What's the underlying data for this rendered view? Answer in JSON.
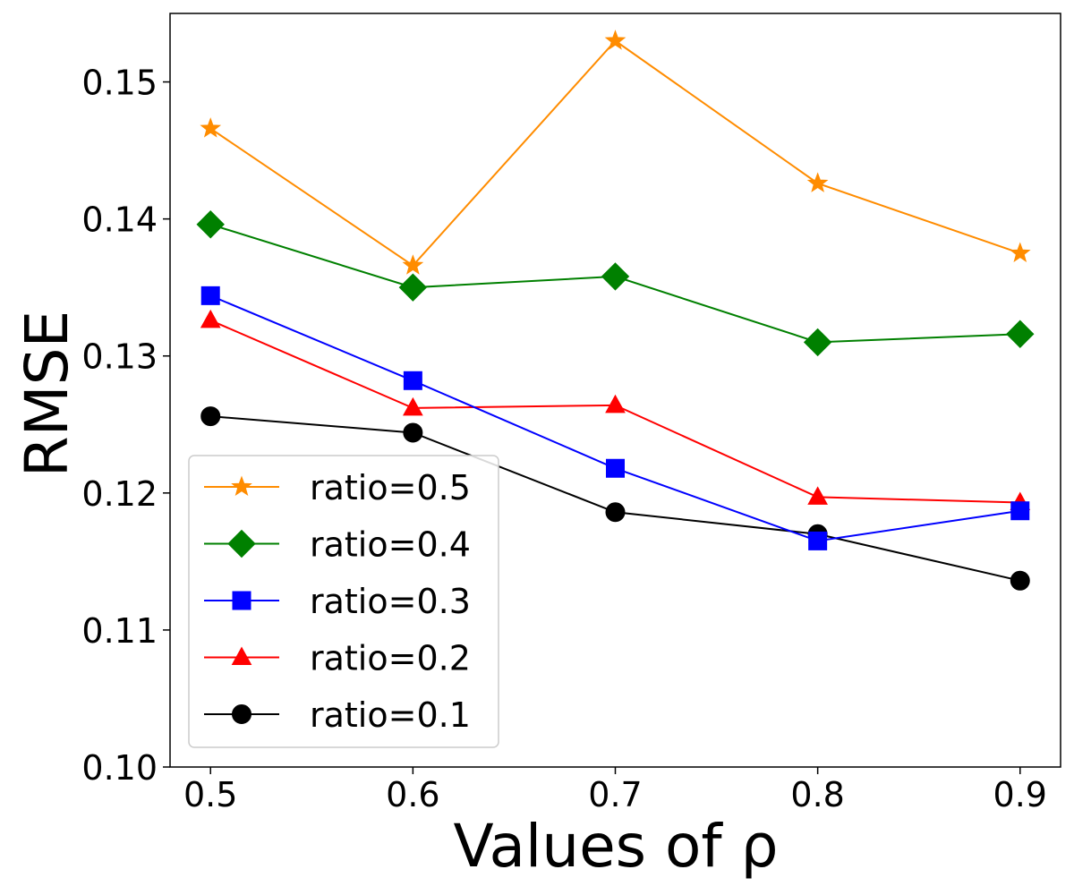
{
  "chart_data": {
    "type": "line",
    "title": "",
    "xlabel": "Values of ρ",
    "ylabel": "RMSE",
    "x": [
      0.5,
      0.6,
      0.7,
      0.8,
      0.9
    ],
    "xlim": [
      0.48,
      0.92
    ],
    "ylim": [
      0.1,
      0.155
    ],
    "xticks": [
      0.5,
      0.6,
      0.7,
      0.8,
      0.9
    ],
    "xtick_labels": [
      "0.5",
      "0.6",
      "0.7",
      "0.8",
      "0.9"
    ],
    "yticks": [
      0.1,
      0.11,
      0.12,
      0.13,
      0.14,
      0.15
    ],
    "ytick_labels": [
      "0.10",
      "0.11",
      "0.12",
      "0.13",
      "0.14",
      "0.15"
    ],
    "grid": false,
    "legend_position": "lower-left",
    "series": [
      {
        "name": "ratio=0.5",
        "color": "#ff8c00",
        "marker": "star",
        "values": [
          0.1466,
          0.1366,
          0.153,
          0.1426,
          0.1375
        ]
      },
      {
        "name": "ratio=0.4",
        "color": "#008000",
        "marker": "diamond",
        "values": [
          0.1396,
          0.135,
          0.1358,
          0.131,
          0.1316
        ]
      },
      {
        "name": "ratio=0.3",
        "color": "#0000ff",
        "marker": "square",
        "values": [
          0.1344,
          0.1282,
          0.1218,
          0.1165,
          0.1187
        ]
      },
      {
        "name": "ratio=0.2",
        "color": "#ff0000",
        "marker": "triangle",
        "values": [
          0.1326,
          0.1262,
          0.1264,
          0.1197,
          0.1193
        ]
      },
      {
        "name": "ratio=0.1",
        "color": "#000000",
        "marker": "circle",
        "values": [
          0.1256,
          0.1244,
          0.1186,
          0.117,
          0.1136
        ]
      }
    ]
  }
}
